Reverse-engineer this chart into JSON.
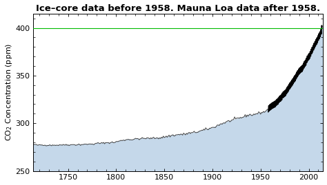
{
  "title": "Ice–core data before 1958. Mauna Loa data after 1958.",
  "ylabel": "CO$_2$ Concentration (ppm)",
  "xlim": [
    1714,
    2015
  ],
  "ylim": [
    250,
    415
  ],
  "yticks": [
    250,
    300,
    350,
    400
  ],
  "xticks": [
    1750,
    1800,
    1850,
    1900,
    1950,
    2000
  ],
  "hline_y": 400,
  "hline_color": "#00bb00",
  "fill_color": "#c5d8ea",
  "fill_alpha": 1.0,
  "line_color_ice": "#444444",
  "line_color_mauna": "#000000",
  "background_color": "#ffffff",
  "title_fontsize": 9.5,
  "axis_fontsize": 8,
  "tick_fontsize": 8,
  "ice_core_annual_data": [
    [
      1714,
      278.0
    ],
    [
      1715,
      277.8
    ],
    [
      1716,
      277.5
    ],
    [
      1717,
      277.3
    ],
    [
      1718,
      277.2
    ],
    [
      1719,
      277.1
    ],
    [
      1720,
      277.0
    ],
    [
      1721,
      277.2
    ],
    [
      1722,
      277.3
    ],
    [
      1723,
      277.1
    ],
    [
      1724,
      277.0
    ],
    [
      1725,
      276.9
    ],
    [
      1726,
      277.0
    ],
    [
      1727,
      277.2
    ],
    [
      1728,
      277.1
    ],
    [
      1729,
      277.0
    ],
    [
      1730,
      277.1
    ],
    [
      1731,
      277.3
    ],
    [
      1732,
      277.2
    ],
    [
      1733,
      277.0
    ],
    [
      1734,
      276.8
    ],
    [
      1735,
      276.9
    ],
    [
      1736,
      277.1
    ],
    [
      1737,
      277.3
    ],
    [
      1738,
      277.2
    ],
    [
      1739,
      277.0
    ],
    [
      1740,
      277.1
    ],
    [
      1741,
      277.3
    ],
    [
      1742,
      277.5
    ],
    [
      1743,
      277.4
    ],
    [
      1744,
      277.2
    ],
    [
      1745,
      277.1
    ],
    [
      1746,
      277.3
    ],
    [
      1747,
      277.5
    ],
    [
      1748,
      277.6
    ],
    [
      1749,
      277.4
    ],
    [
      1750,
      277.3
    ],
    [
      1751,
      277.4
    ],
    [
      1752,
      277.6
    ],
    [
      1753,
      277.5
    ],
    [
      1754,
      277.3
    ],
    [
      1755,
      277.5
    ],
    [
      1756,
      277.7
    ],
    [
      1757,
      277.6
    ],
    [
      1758,
      277.4
    ],
    [
      1759,
      277.5
    ],
    [
      1760,
      277.6
    ],
    [
      1761,
      277.8
    ],
    [
      1762,
      277.7
    ],
    [
      1763,
      277.5
    ],
    [
      1764,
      277.6
    ],
    [
      1765,
      277.8
    ],
    [
      1766,
      278.0
    ],
    [
      1767,
      277.9
    ],
    [
      1768,
      277.7
    ],
    [
      1769,
      277.8
    ],
    [
      1770,
      278.0
    ],
    [
      1771,
      278.2
    ],
    [
      1772,
      278.1
    ],
    [
      1773,
      278.0
    ],
    [
      1774,
      278.2
    ],
    [
      1775,
      278.4
    ],
    [
      1776,
      278.3
    ],
    [
      1777,
      278.1
    ],
    [
      1778,
      278.3
    ],
    [
      1779,
      278.5
    ],
    [
      1780,
      279.0
    ],
    [
      1781,
      279.3
    ],
    [
      1782,
      279.1
    ],
    [
      1783,
      278.9
    ],
    [
      1784,
      279.0
    ],
    [
      1785,
      279.2
    ],
    [
      1786,
      279.1
    ],
    [
      1787,
      279.3
    ],
    [
      1788,
      279.5
    ],
    [
      1789,
      279.4
    ],
    [
      1790,
      279.6
    ],
    [
      1791,
      279.8
    ],
    [
      1792,
      279.7
    ],
    [
      1793,
      279.5
    ],
    [
      1794,
      279.7
    ],
    [
      1795,
      279.9
    ],
    [
      1796,
      280.0
    ],
    [
      1797,
      279.8
    ],
    [
      1798,
      280.0
    ],
    [
      1799,
      280.2
    ],
    [
      1800,
      280.5
    ],
    [
      1801,
      280.8
    ],
    [
      1802,
      281.0
    ],
    [
      1803,
      281.2
    ],
    [
      1804,
      281.5
    ],
    [
      1805,
      281.8
    ],
    [
      1806,
      282.0
    ],
    [
      1807,
      282.3
    ],
    [
      1808,
      282.5
    ],
    [
      1809,
      282.3
    ],
    [
      1810,
      282.5
    ],
    [
      1811,
      282.8
    ],
    [
      1812,
      283.0
    ],
    [
      1813,
      283.2
    ],
    [
      1814,
      283.1
    ],
    [
      1815,
      282.9
    ],
    [
      1816,
      282.7
    ],
    [
      1817,
      282.9
    ],
    [
      1818,
      283.1
    ],
    [
      1819,
      283.3
    ],
    [
      1820,
      283.5
    ],
    [
      1821,
      283.7
    ],
    [
      1822,
      283.9
    ],
    [
      1823,
      283.7
    ],
    [
      1824,
      283.5
    ],
    [
      1825,
      283.7
    ],
    [
      1826,
      283.9
    ],
    [
      1827,
      284.1
    ],
    [
      1828,
      284.3
    ],
    [
      1829,
      284.1
    ],
    [
      1830,
      284.0
    ],
    [
      1831,
      284.2
    ],
    [
      1832,
      284.4
    ],
    [
      1833,
      284.3
    ],
    [
      1834,
      284.1
    ],
    [
      1835,
      284.0
    ],
    [
      1836,
      284.2
    ],
    [
      1837,
      284.4
    ],
    [
      1838,
      284.6
    ],
    [
      1839,
      284.5
    ],
    [
      1840,
      284.3
    ],
    [
      1841,
      284.5
    ],
    [
      1842,
      284.7
    ],
    [
      1843,
      284.9
    ],
    [
      1844,
      284.8
    ],
    [
      1845,
      284.6
    ],
    [
      1846,
      284.8
    ],
    [
      1847,
      285.0
    ],
    [
      1848,
      285.2
    ],
    [
      1849,
      285.4
    ],
    [
      1850,
      285.6
    ],
    [
      1851,
      285.8
    ],
    [
      1852,
      286.0
    ],
    [
      1853,
      286.2
    ],
    [
      1854,
      286.4
    ],
    [
      1855,
      286.6
    ],
    [
      1856,
      286.8
    ],
    [
      1857,
      287.0
    ],
    [
      1858,
      287.2
    ],
    [
      1859,
      287.4
    ],
    [
      1860,
      287.5
    ],
    [
      1861,
      287.7
    ],
    [
      1862,
      287.5
    ],
    [
      1863,
      287.7
    ],
    [
      1864,
      287.9
    ],
    [
      1865,
      288.1
    ],
    [
      1866,
      288.3
    ],
    [
      1867,
      288.5
    ],
    [
      1868,
      288.3
    ],
    [
      1869,
      288.1
    ],
    [
      1870,
      288.3
    ],
    [
      1871,
      288.5
    ],
    [
      1872,
      288.7
    ],
    [
      1873,
      289.0
    ],
    [
      1874,
      289.2
    ],
    [
      1875,
      289.4
    ],
    [
      1876,
      289.6
    ],
    [
      1877,
      289.8
    ],
    [
      1878,
      289.6
    ],
    [
      1879,
      289.8
    ],
    [
      1880,
      290.0
    ],
    [
      1881,
      290.3
    ],
    [
      1882,
      290.5
    ],
    [
      1883,
      290.7
    ],
    [
      1884,
      291.0
    ],
    [
      1885,
      291.2
    ],
    [
      1886,
      291.5
    ],
    [
      1887,
      291.7
    ],
    [
      1888,
      292.0
    ],
    [
      1889,
      292.2
    ],
    [
      1890,
      292.5
    ],
    [
      1891,
      292.8
    ],
    [
      1892,
      293.1
    ],
    [
      1893,
      293.3
    ],
    [
      1894,
      293.6
    ],
    [
      1895,
      293.9
    ],
    [
      1896,
      294.2
    ],
    [
      1897,
      294.5
    ],
    [
      1898,
      294.8
    ],
    [
      1899,
      295.0
    ],
    [
      1900,
      295.4
    ],
    [
      1901,
      295.8
    ],
    [
      1902,
      296.2
    ],
    [
      1903,
      296.6
    ],
    [
      1904,
      297.0
    ],
    [
      1905,
      297.5
    ],
    [
      1906,
      298.0
    ],
    [
      1907,
      298.5
    ],
    [
      1908,
      299.0
    ],
    [
      1909,
      299.3
    ],
    [
      1910,
      299.6
    ],
    [
      1911,
      300.0
    ],
    [
      1912,
      300.4
    ],
    [
      1913,
      300.8
    ],
    [
      1914,
      301.2
    ],
    [
      1915,
      301.5
    ],
    [
      1916,
      301.8
    ],
    [
      1917,
      302.1
    ],
    [
      1918,
      302.5
    ],
    [
      1919,
      302.8
    ],
    [
      1920,
      303.0
    ],
    [
      1921,
      303.3
    ],
    [
      1922,
      303.6
    ],
    [
      1923,
      303.9
    ],
    [
      1924,
      304.2
    ],
    [
      1925,
      304.5
    ],
    [
      1926,
      304.8
    ],
    [
      1927,
      305.1
    ],
    [
      1928,
      305.4
    ],
    [
      1929,
      305.7
    ],
    [
      1930,
      306.0
    ],
    [
      1931,
      306.3
    ],
    [
      1932,
      306.7
    ],
    [
      1933,
      307.0
    ],
    [
      1934,
      307.4
    ],
    [
      1935,
      307.8
    ],
    [
      1936,
      308.2
    ],
    [
      1937,
      308.6
    ],
    [
      1938,
      309.0
    ],
    [
      1939,
      308.8
    ],
    [
      1940,
      308.6
    ],
    [
      1941,
      308.8
    ],
    [
      1942,
      309.0
    ],
    [
      1943,
      309.3
    ],
    [
      1944,
      309.5
    ],
    [
      1945,
      309.8
    ],
    [
      1946,
      310.0
    ],
    [
      1947,
      310.3
    ],
    [
      1948,
      310.5
    ],
    [
      1949,
      310.8
    ],
    [
      1950,
      311.0
    ],
    [
      1951,
      311.2
    ],
    [
      1952,
      311.5
    ],
    [
      1953,
      311.8
    ],
    [
      1954,
      312.0
    ],
    [
      1955,
      312.5
    ],
    [
      1956,
      313.0
    ],
    [
      1957,
      314.0
    ],
    [
      1958,
      315.0
    ]
  ]
}
